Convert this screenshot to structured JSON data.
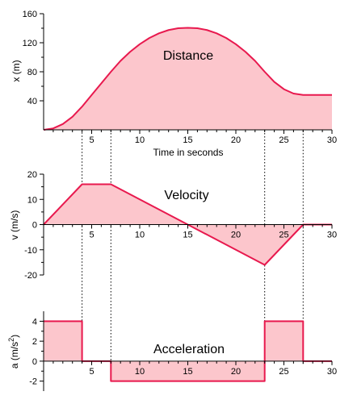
{
  "chart_data": [
    {
      "type": "area",
      "title": "Distance",
      "xlabel": "Time in seconds",
      "ylabel": "x (m)",
      "xlim": [
        0,
        30
      ],
      "ylim": [
        0,
        160
      ],
      "xticks": [
        5,
        10,
        15,
        20,
        25,
        30
      ],
      "yticks": [
        40,
        80,
        120,
        160
      ],
      "x": [
        0,
        1,
        2,
        3,
        4,
        5,
        6,
        7,
        8,
        9,
        10,
        11,
        12,
        13,
        14,
        15,
        16,
        17,
        18,
        19,
        20,
        21,
        22,
        23,
        24,
        25,
        26,
        27,
        28,
        29,
        30
      ],
      "values": [
        0,
        2,
        8,
        18,
        32,
        48,
        64,
        80,
        95,
        107.5,
        118,
        126.5,
        133,
        137.5,
        140,
        140.5,
        140,
        137.5,
        133,
        126.5,
        118,
        107.5,
        95,
        80,
        66,
        56,
        50,
        48,
        48,
        48,
        48
      ]
    },
    {
      "type": "area",
      "title": "Velocity",
      "xlabel": "",
      "ylabel": "v (m/s)",
      "xlim": [
        0,
        30
      ],
      "ylim": [
        -20,
        20
      ],
      "xticks": [
        5,
        10,
        15,
        20,
        25,
        30
      ],
      "yticks": [
        -20,
        -10,
        0,
        10,
        20
      ],
      "x": [
        0,
        4,
        7,
        15,
        23,
        27,
        30
      ],
      "values": [
        0,
        16,
        16,
        0,
        -16,
        0,
        0
      ]
    },
    {
      "type": "area",
      "title": "Acceleration",
      "xlabel": "",
      "ylabel": "a (m/s",
      "ylabel_superscript": "2",
      "ylabel_suffix": ")",
      "xlim": [
        0,
        30
      ],
      "ylim": [
        -3,
        5
      ],
      "xticks": [
        5,
        10,
        15,
        20,
        25,
        30
      ],
      "yticks": [
        -2,
        0,
        2,
        4
      ],
      "x": [
        0,
        4,
        4,
        7,
        7,
        23,
        23,
        27,
        27,
        30
      ],
      "values": [
        4,
        4,
        0,
        0,
        -2,
        -2,
        4,
        4,
        0,
        0
      ]
    }
  ],
  "guide_times": [
    4,
    7,
    23,
    27
  ],
  "colors": {
    "line": "#e8194e",
    "fill": "#fcc6cc"
  }
}
